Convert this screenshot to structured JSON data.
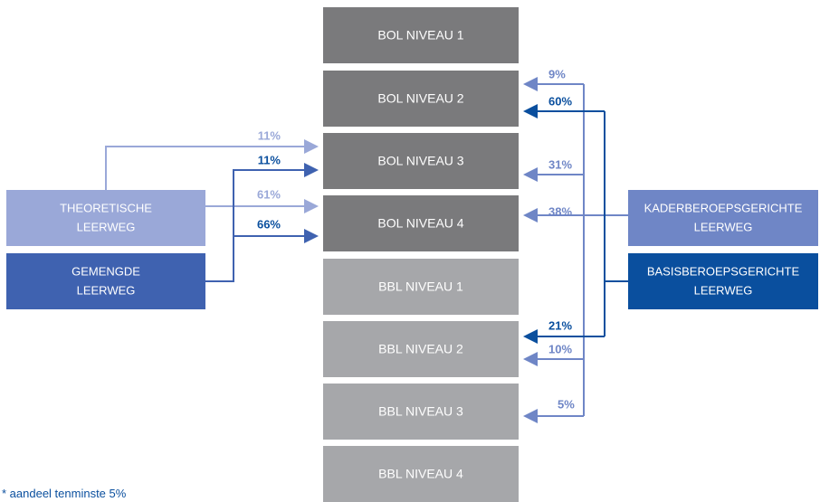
{
  "levels": [
    "BOL NIVEAU 1",
    "BOL NIVEAU 2",
    "BOL NIVEAU 3",
    "BOL NIVEAU 4",
    "BBL NIVEAU 1",
    "BBL NIVEAU 2",
    "BBL NIVEAU 3",
    "BBL NIVEAU 4"
  ],
  "sources": [
    {
      "lines": [
        "THEORETISCHE",
        "LEERWEG"
      ]
    },
    {
      "lines": [
        "GEMENGDE",
        "LEERWEG"
      ]
    },
    {
      "lines": [
        "KADERBEROEPSGERICHTE",
        "LEERWEG"
      ]
    },
    {
      "lines": [
        "BASISBEROEPSGERICHTE",
        "LEERWEG"
      ]
    }
  ],
  "flows": {
    "theoretische": [
      "11%",
      "61%"
    ],
    "gemengde": [
      "11%",
      "66%"
    ],
    "kader": [
      "9%",
      "31%",
      "38%",
      "10%",
      "5%"
    ],
    "basis": [
      "60%",
      "21%"
    ]
  },
  "footnote": "* aandeel tenminste 5%"
}
